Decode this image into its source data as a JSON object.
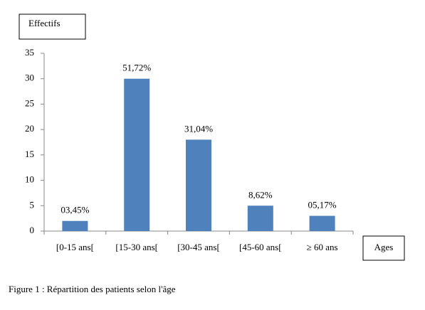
{
  "chart_data": {
    "type": "bar",
    "y_label": "Effectifs",
    "x_label": "Ages",
    "caption": "Figure 1 : Répartition des patients selon l'âge",
    "categories": [
      "[0-15 ans[",
      "[15-30 ans[",
      "[30-45 ans[",
      "[45-60 ans[",
      "≥ 60 ans"
    ],
    "values": [
      2,
      30,
      18,
      5,
      3
    ],
    "annotations": [
      "03,45%",
      "51,72%",
      "31,04%",
      "8,62%",
      "05,17%"
    ],
    "color": "#4f81bd",
    "ylim": [
      0,
      35
    ],
    "yticks": [
      0,
      5,
      10,
      15,
      20,
      25,
      30,
      35
    ]
  }
}
